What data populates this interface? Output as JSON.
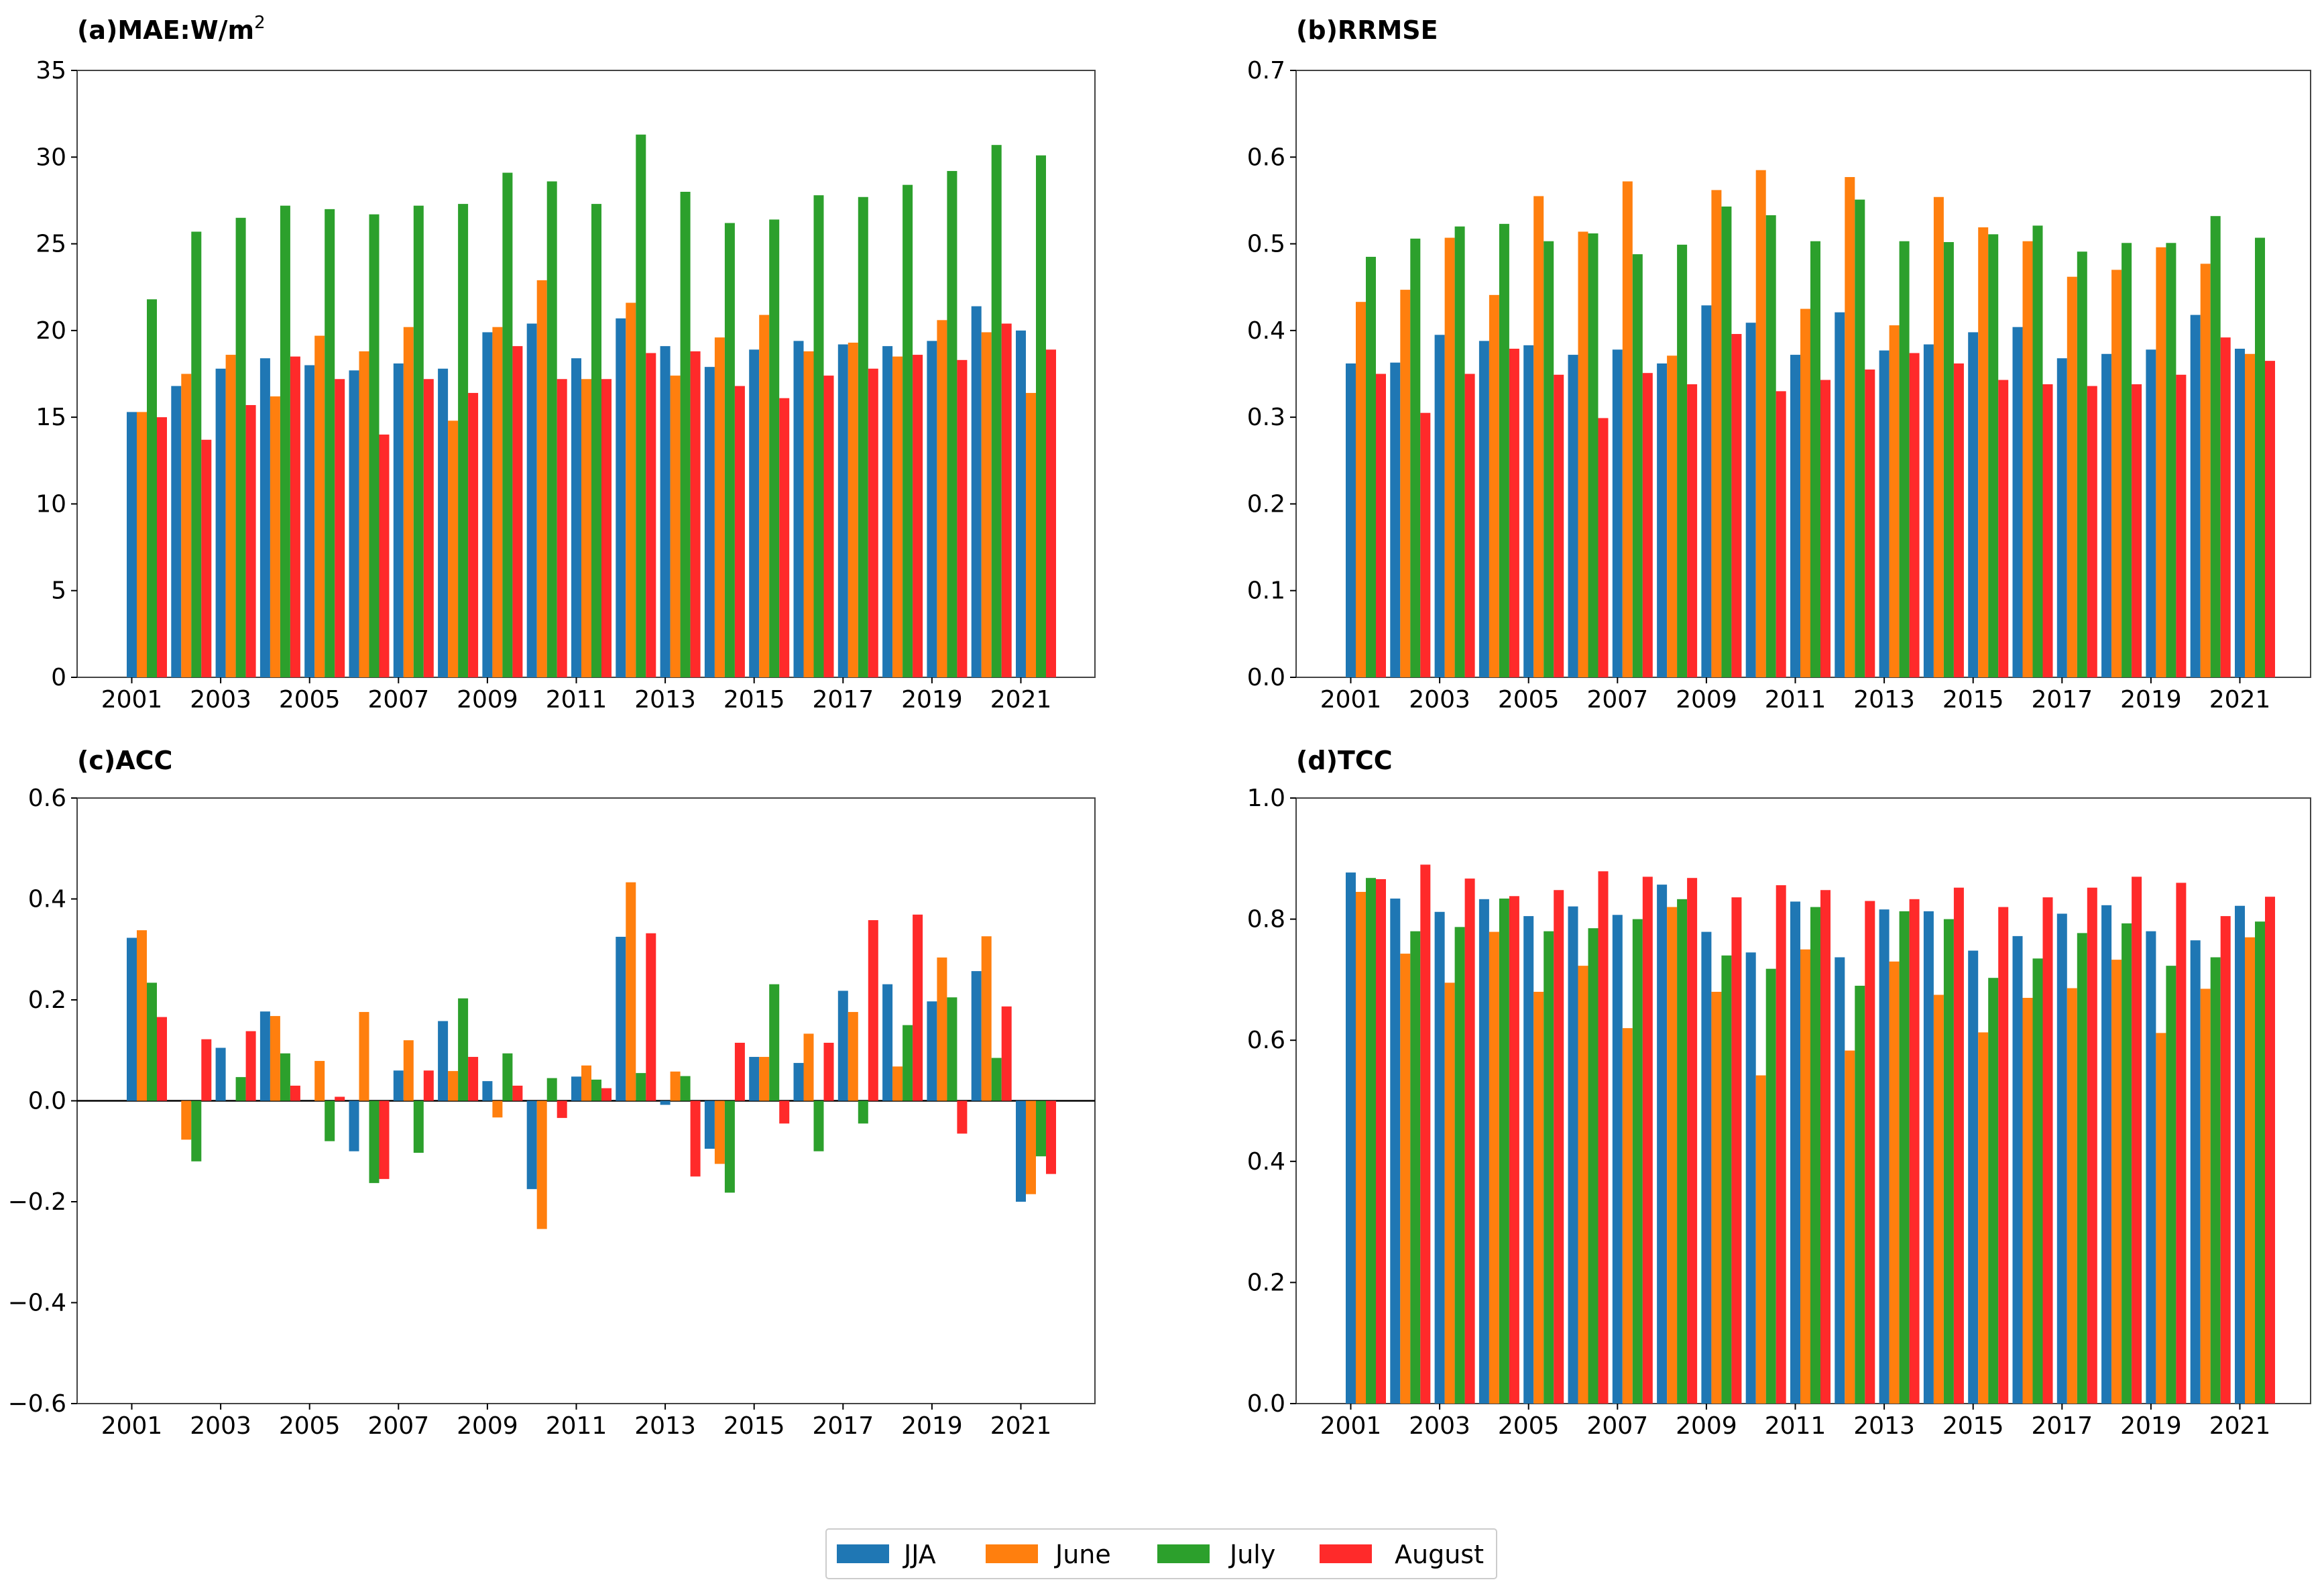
{
  "chart_data": [
    {
      "type": "bar",
      "title": "(a)MAE:W/m",
      "title_superscript": "2",
      "ylim": [
        0,
        35
      ],
      "yticks": [
        "0",
        "5",
        "10",
        "15",
        "20",
        "25",
        "30",
        "35"
      ],
      "xtick_labels": [
        "2001",
        "2003",
        "2005",
        "2007",
        "2009",
        "2011",
        "2013",
        "2015",
        "2017",
        "2019",
        "2021"
      ],
      "x": [
        2001,
        2002,
        2003,
        2004,
        2005,
        2006,
        2007,
        2008,
        2009,
        2010,
        2011,
        2012,
        2013,
        2014,
        2015,
        2016,
        2017,
        2018,
        2019,
        2020,
        2021
      ],
      "series": [
        {
          "name": "JJA",
          "color": "#1f77b4",
          "values": [
            15.3,
            16.8,
            17.8,
            18.4,
            18.0,
            17.7,
            18.1,
            17.8,
            19.9,
            20.4,
            18.4,
            20.7,
            19.1,
            17.9,
            18.9,
            19.4,
            19.2,
            19.1,
            19.4,
            21.4,
            20.0
          ]
        },
        {
          "name": "June",
          "color": "#ff7f0e",
          "values": [
            15.3,
            17.5,
            18.6,
            16.2,
            19.7,
            18.8,
            20.2,
            14.8,
            20.2,
            22.9,
            17.2,
            21.6,
            17.4,
            19.6,
            20.9,
            18.8,
            19.3,
            18.5,
            20.6,
            19.9,
            16.4
          ]
        },
        {
          "name": "July",
          "color": "#2ca02c",
          "values": [
            21.8,
            25.7,
            26.5,
            27.2,
            27.0,
            26.7,
            27.2,
            27.3,
            29.1,
            28.6,
            27.3,
            31.3,
            28.0,
            26.2,
            26.4,
            27.8,
            27.7,
            28.4,
            29.2,
            30.7,
            30.1
          ]
        },
        {
          "name": "August",
          "color": "#ff2a2a",
          "values": [
            15.0,
            13.7,
            15.7,
            18.5,
            17.2,
            14.0,
            17.2,
            16.4,
            19.1,
            17.2,
            17.2,
            18.7,
            18.8,
            16.8,
            16.1,
            17.4,
            17.8,
            18.6,
            18.3,
            20.4,
            18.9
          ]
        }
      ]
    },
    {
      "type": "bar",
      "title": "(b)RRMSE",
      "ylim": [
        0,
        0.7
      ],
      "yticks": [
        "0.0",
        "0.1",
        "0.2",
        "0.3",
        "0.4",
        "0.5",
        "0.6",
        "0.7"
      ],
      "xtick_labels": [
        "2001",
        "2003",
        "2005",
        "2007",
        "2009",
        "2011",
        "2013",
        "2015",
        "2017",
        "2019",
        "2021"
      ],
      "x": [
        2001,
        2002,
        2003,
        2004,
        2005,
        2006,
        2007,
        2008,
        2009,
        2010,
        2011,
        2012,
        2013,
        2014,
        2015,
        2016,
        2017,
        2018,
        2019,
        2020,
        2021
      ],
      "series": [
        {
          "name": "JJA",
          "color": "#1f77b4",
          "values": [
            0.362,
            0.363,
            0.395,
            0.388,
            0.383,
            0.372,
            0.378,
            0.362,
            0.429,
            0.409,
            0.372,
            0.421,
            0.377,
            0.384,
            0.398,
            0.404,
            0.368,
            0.373,
            0.378,
            0.418,
            0.379
          ]
        },
        {
          "name": "June",
          "color": "#ff7f0e",
          "values": [
            0.433,
            0.447,
            0.507,
            0.441,
            0.555,
            0.514,
            0.572,
            0.371,
            0.562,
            0.585,
            0.425,
            0.577,
            0.406,
            0.554,
            0.519,
            0.503,
            0.462,
            0.47,
            0.496,
            0.477,
            0.373
          ]
        },
        {
          "name": "July",
          "color": "#2ca02c",
          "values": [
            0.485,
            0.506,
            0.52,
            0.523,
            0.503,
            0.512,
            0.488,
            0.499,
            0.543,
            0.533,
            0.503,
            0.551,
            0.503,
            0.502,
            0.511,
            0.521,
            0.491,
            0.501,
            0.501,
            0.532,
            0.507
          ]
        },
        {
          "name": "August",
          "color": "#ff2a2a",
          "values": [
            0.35,
            0.305,
            0.35,
            0.379,
            0.349,
            0.299,
            0.351,
            0.338,
            0.396,
            0.33,
            0.343,
            0.355,
            0.374,
            0.362,
            0.343,
            0.338,
            0.336,
            0.338,
            0.349,
            0.392,
            0.365
          ]
        }
      ]
    },
    {
      "type": "bar",
      "title": "(c)ACC",
      "ylim": [
        -0.6,
        0.6
      ],
      "yticks": [
        "−0.6",
        "−0.4",
        "−0.2",
        "0.0",
        "0.2",
        "0.4",
        "0.6"
      ],
      "xtick_labels": [
        "2001",
        "2003",
        "2005",
        "2007",
        "2009",
        "2011",
        "2013",
        "2015",
        "2017",
        "2019",
        "2021"
      ],
      "x": [
        2001,
        2002,
        2003,
        2004,
        2005,
        2006,
        2007,
        2008,
        2009,
        2010,
        2011,
        2012,
        2013,
        2014,
        2015,
        2016,
        2017,
        2018,
        2019,
        2020,
        2021
      ],
      "series": [
        {
          "name": "JJA",
          "color": "#1f77b4",
          "values": [
            0.323,
            0.0,
            0.105,
            0.177,
            0.0,
            -0.1,
            0.06,
            0.158,
            0.039,
            -0.175,
            0.048,
            0.325,
            -0.008,
            -0.095,
            0.087,
            0.075,
            0.218,
            0.231,
            0.197,
            0.257,
            -0.2
          ]
        },
        {
          "name": "June",
          "color": "#ff7f0e",
          "values": [
            0.338,
            -0.077,
            0.0,
            0.168,
            0.079,
            0.176,
            0.12,
            0.059,
            -0.033,
            -0.254,
            0.07,
            0.433,
            0.058,
            -0.125,
            0.087,
            0.133,
            0.176,
            0.068,
            0.284,
            0.326,
            -0.185
          ]
        },
        {
          "name": "July",
          "color": "#2ca02c",
          "values": [
            0.234,
            -0.12,
            0.047,
            0.094,
            -0.08,
            -0.163,
            -0.103,
            0.203,
            0.094,
            0.045,
            0.042,
            0.055,
            0.049,
            -0.182,
            0.231,
            -0.1,
            -0.045,
            0.15,
            0.205,
            0.085,
            -0.11
          ]
        },
        {
          "name": "August",
          "color": "#ff2a2a",
          "values": [
            0.166,
            0.122,
            0.138,
            0.03,
            0.008,
            -0.155,
            0.06,
            0.087,
            0.03,
            -0.034,
            0.025,
            0.332,
            -0.15,
            0.115,
            -0.045,
            0.115,
            0.358,
            0.369,
            -0.065,
            0.187,
            -0.145
          ]
        }
      ]
    },
    {
      "type": "bar",
      "title": "(d)TCC",
      "ylim": [
        0,
        1.0
      ],
      "yticks": [
        "0.0",
        "0.2",
        "0.4",
        "0.6",
        "0.8",
        "1.0"
      ],
      "xtick_labels": [
        "2001",
        "2003",
        "2005",
        "2007",
        "2009",
        "2011",
        "2013",
        "2015",
        "2017",
        "2019",
        "2021"
      ],
      "x": [
        2001,
        2002,
        2003,
        2004,
        2005,
        2006,
        2007,
        2008,
        2009,
        2010,
        2011,
        2012,
        2013,
        2014,
        2015,
        2016,
        2017,
        2018,
        2019,
        2020,
        2021
      ],
      "series": [
        {
          "name": "JJA",
          "color": "#1f77b4",
          "values": [
            0.877,
            0.834,
            0.812,
            0.833,
            0.805,
            0.821,
            0.807,
            0.857,
            0.779,
            0.745,
            0.829,
            0.737,
            0.816,
            0.813,
            0.748,
            0.772,
            0.809,
            0.823,
            0.78,
            0.765,
            0.822
          ]
        },
        {
          "name": "June",
          "color": "#ff7f0e",
          "values": [
            0.845,
            0.743,
            0.695,
            0.779,
            0.68,
            0.723,
            0.62,
            0.82,
            0.68,
            0.542,
            0.75,
            0.583,
            0.73,
            0.675,
            0.613,
            0.67,
            0.686,
            0.733,
            0.612,
            0.685,
            0.77
          ]
        },
        {
          "name": "July",
          "color": "#2ca02c",
          "values": [
            0.868,
            0.78,
            0.787,
            0.834,
            0.78,
            0.785,
            0.8,
            0.833,
            0.74,
            0.718,
            0.82,
            0.69,
            0.813,
            0.8,
            0.703,
            0.735,
            0.777,
            0.793,
            0.723,
            0.737,
            0.796
          ]
        },
        {
          "name": "August",
          "color": "#ff2a2a",
          "values": [
            0.866,
            0.89,
            0.867,
            0.838,
            0.848,
            0.879,
            0.87,
            0.868,
            0.836,
            0.856,
            0.848,
            0.83,
            0.833,
            0.852,
            0.82,
            0.836,
            0.852,
            0.87,
            0.86,
            0.805,
            0.837
          ]
        }
      ]
    }
  ],
  "legend": {
    "placement": "bottom-center",
    "items": [
      {
        "label": "JJA",
        "color": "#1f77b4"
      },
      {
        "label": "June",
        "color": "#ff7f0e"
      },
      {
        "label": "July",
        "color": "#2ca02c"
      },
      {
        "label": "August",
        "color": "#ff2a2a"
      }
    ]
  }
}
